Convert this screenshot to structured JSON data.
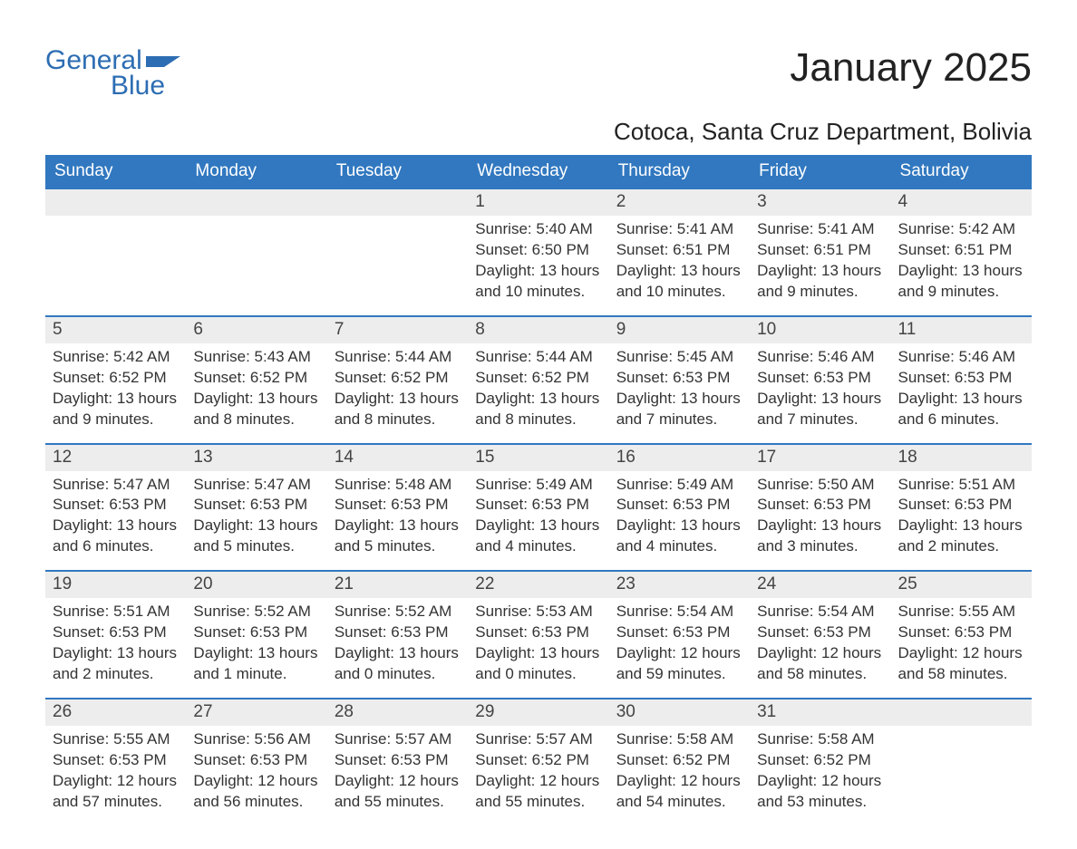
{
  "logo": {
    "word1": "General",
    "word2": "Blue",
    "flag_color": "#2d6db3"
  },
  "title": "January 2025",
  "location": "Cotoca, Santa Cruz Department, Bolivia",
  "colors": {
    "header_bg": "#3178c0",
    "header_text": "#ffffff",
    "daynum_bg": "#ededed",
    "daynum_text": "#444444",
    "body_text": "#333333",
    "rule": "#3178c0",
    "page_bg": "#ffffff",
    "logo_color": "#2d6db3"
  },
  "typography": {
    "title_fontsize": 44,
    "location_fontsize": 26,
    "weekday_fontsize": 19,
    "daynum_fontsize": 19,
    "body_fontsize": 17,
    "logo_fontsize": 30
  },
  "weekdays": [
    "Sunday",
    "Monday",
    "Tuesday",
    "Wednesday",
    "Thursday",
    "Friday",
    "Saturday"
  ],
  "labels": {
    "sunrise": "Sunrise:",
    "sunset": "Sunset:",
    "daylight": "Daylight:"
  },
  "weeks": [
    [
      {
        "empty": true
      },
      {
        "empty": true
      },
      {
        "empty": true
      },
      {
        "n": "1",
        "sunrise": "5:40 AM",
        "sunset": "6:50 PM",
        "daylight": "13 hours and 10 minutes."
      },
      {
        "n": "2",
        "sunrise": "5:41 AM",
        "sunset": "6:51 PM",
        "daylight": "13 hours and 10 minutes."
      },
      {
        "n": "3",
        "sunrise": "5:41 AM",
        "sunset": "6:51 PM",
        "daylight": "13 hours and 9 minutes."
      },
      {
        "n": "4",
        "sunrise": "5:42 AM",
        "sunset": "6:51 PM",
        "daylight": "13 hours and 9 minutes."
      }
    ],
    [
      {
        "n": "5",
        "sunrise": "5:42 AM",
        "sunset": "6:52 PM",
        "daylight": "13 hours and 9 minutes."
      },
      {
        "n": "6",
        "sunrise": "5:43 AM",
        "sunset": "6:52 PM",
        "daylight": "13 hours and 8 minutes."
      },
      {
        "n": "7",
        "sunrise": "5:44 AM",
        "sunset": "6:52 PM",
        "daylight": "13 hours and 8 minutes."
      },
      {
        "n": "8",
        "sunrise": "5:44 AM",
        "sunset": "6:52 PM",
        "daylight": "13 hours and 8 minutes."
      },
      {
        "n": "9",
        "sunrise": "5:45 AM",
        "sunset": "6:53 PM",
        "daylight": "13 hours and 7 minutes."
      },
      {
        "n": "10",
        "sunrise": "5:46 AM",
        "sunset": "6:53 PM",
        "daylight": "13 hours and 7 minutes."
      },
      {
        "n": "11",
        "sunrise": "5:46 AM",
        "sunset": "6:53 PM",
        "daylight": "13 hours and 6 minutes."
      }
    ],
    [
      {
        "n": "12",
        "sunrise": "5:47 AM",
        "sunset": "6:53 PM",
        "daylight": "13 hours and 6 minutes."
      },
      {
        "n": "13",
        "sunrise": "5:47 AM",
        "sunset": "6:53 PM",
        "daylight": "13 hours and 5 minutes."
      },
      {
        "n": "14",
        "sunrise": "5:48 AM",
        "sunset": "6:53 PM",
        "daylight": "13 hours and 5 minutes."
      },
      {
        "n": "15",
        "sunrise": "5:49 AM",
        "sunset": "6:53 PM",
        "daylight": "13 hours and 4 minutes."
      },
      {
        "n": "16",
        "sunrise": "5:49 AM",
        "sunset": "6:53 PM",
        "daylight": "13 hours and 4 minutes."
      },
      {
        "n": "17",
        "sunrise": "5:50 AM",
        "sunset": "6:53 PM",
        "daylight": "13 hours and 3 minutes."
      },
      {
        "n": "18",
        "sunrise": "5:51 AM",
        "sunset": "6:53 PM",
        "daylight": "13 hours and 2 minutes."
      }
    ],
    [
      {
        "n": "19",
        "sunrise": "5:51 AM",
        "sunset": "6:53 PM",
        "daylight": "13 hours and 2 minutes."
      },
      {
        "n": "20",
        "sunrise": "5:52 AM",
        "sunset": "6:53 PM",
        "daylight": "13 hours and 1 minute."
      },
      {
        "n": "21",
        "sunrise": "5:52 AM",
        "sunset": "6:53 PM",
        "daylight": "13 hours and 0 minutes."
      },
      {
        "n": "22",
        "sunrise": "5:53 AM",
        "sunset": "6:53 PM",
        "daylight": "13 hours and 0 minutes."
      },
      {
        "n": "23",
        "sunrise": "5:54 AM",
        "sunset": "6:53 PM",
        "daylight": "12 hours and 59 minutes."
      },
      {
        "n": "24",
        "sunrise": "5:54 AM",
        "sunset": "6:53 PM",
        "daylight": "12 hours and 58 minutes."
      },
      {
        "n": "25",
        "sunrise": "5:55 AM",
        "sunset": "6:53 PM",
        "daylight": "12 hours and 58 minutes."
      }
    ],
    [
      {
        "n": "26",
        "sunrise": "5:55 AM",
        "sunset": "6:53 PM",
        "daylight": "12 hours and 57 minutes."
      },
      {
        "n": "27",
        "sunrise": "5:56 AM",
        "sunset": "6:53 PM",
        "daylight": "12 hours and 56 minutes."
      },
      {
        "n": "28",
        "sunrise": "5:57 AM",
        "sunset": "6:53 PM",
        "daylight": "12 hours and 55 minutes."
      },
      {
        "n": "29",
        "sunrise": "5:57 AM",
        "sunset": "6:52 PM",
        "daylight": "12 hours and 55 minutes."
      },
      {
        "n": "30",
        "sunrise": "5:58 AM",
        "sunset": "6:52 PM",
        "daylight": "12 hours and 54 minutes."
      },
      {
        "n": "31",
        "sunrise": "5:58 AM",
        "sunset": "6:52 PM",
        "daylight": "12 hours and 53 minutes."
      },
      {
        "empty": true
      }
    ]
  ]
}
